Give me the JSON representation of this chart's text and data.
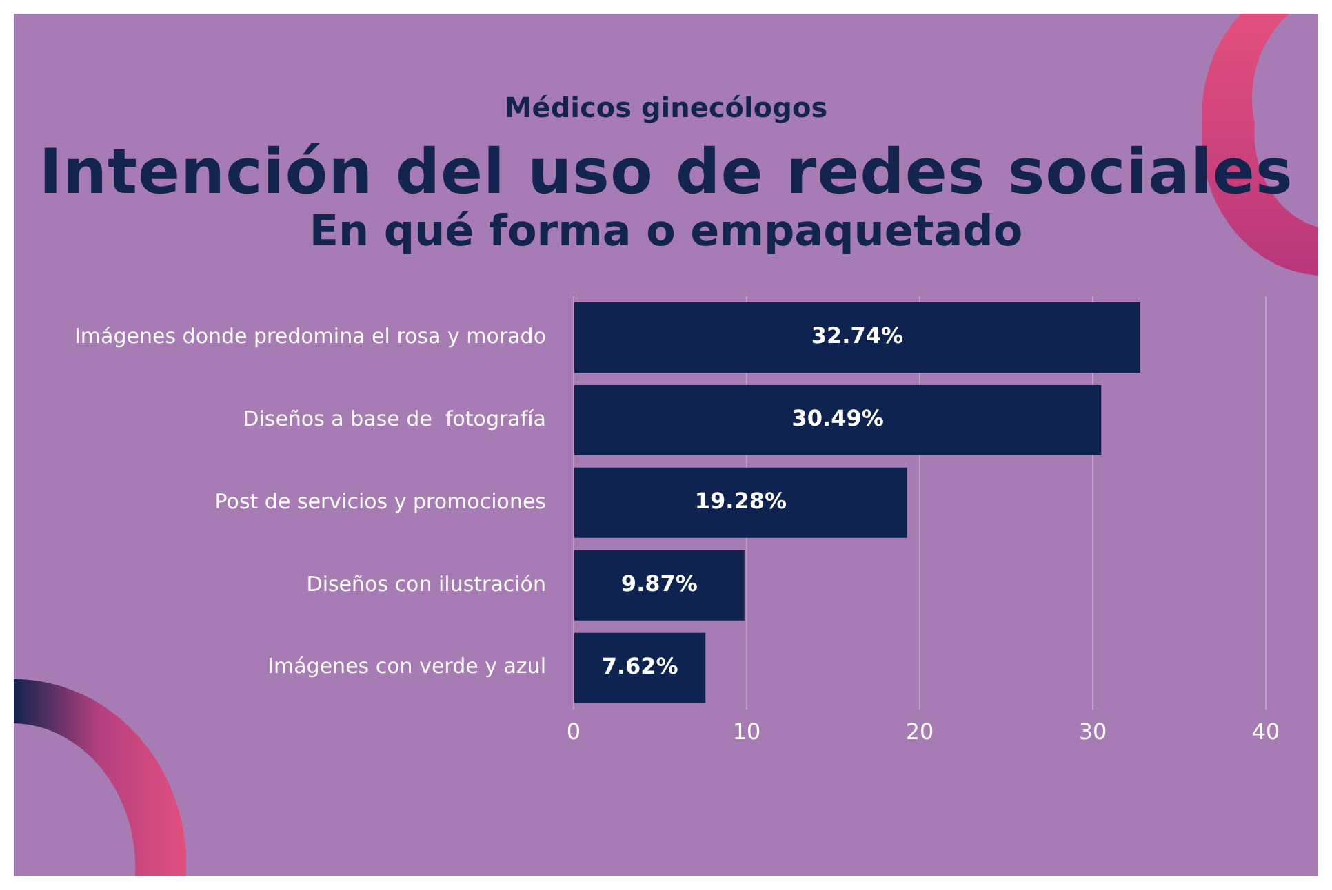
{
  "chart_data": {
    "type": "bar",
    "orientation": "horizontal",
    "title": "Intención del uso de redes sociales",
    "subtitle": "En qué forma o empaquetado",
    "annotations": [
      "Médicos ginecólogos"
    ],
    "categories": [
      "Imágenes donde predomina el rosa y morado",
      "Diseños a base de  fotografía",
      "Post de servicios y promociones",
      "Diseños con ilustración",
      "Imágenes con verde y azul"
    ],
    "values": [
      32.74,
      30.49,
      19.28,
      9.87,
      7.62
    ],
    "value_labels": [
      "32.74%",
      "30.49%",
      "19.28%",
      "9.87%",
      "7.62%"
    ],
    "color": "#0f2350",
    "xlim": [
      0,
      40
    ],
    "xticks": [
      0,
      10,
      20,
      30,
      40
    ],
    "grid": "x",
    "legend": false
  }
}
